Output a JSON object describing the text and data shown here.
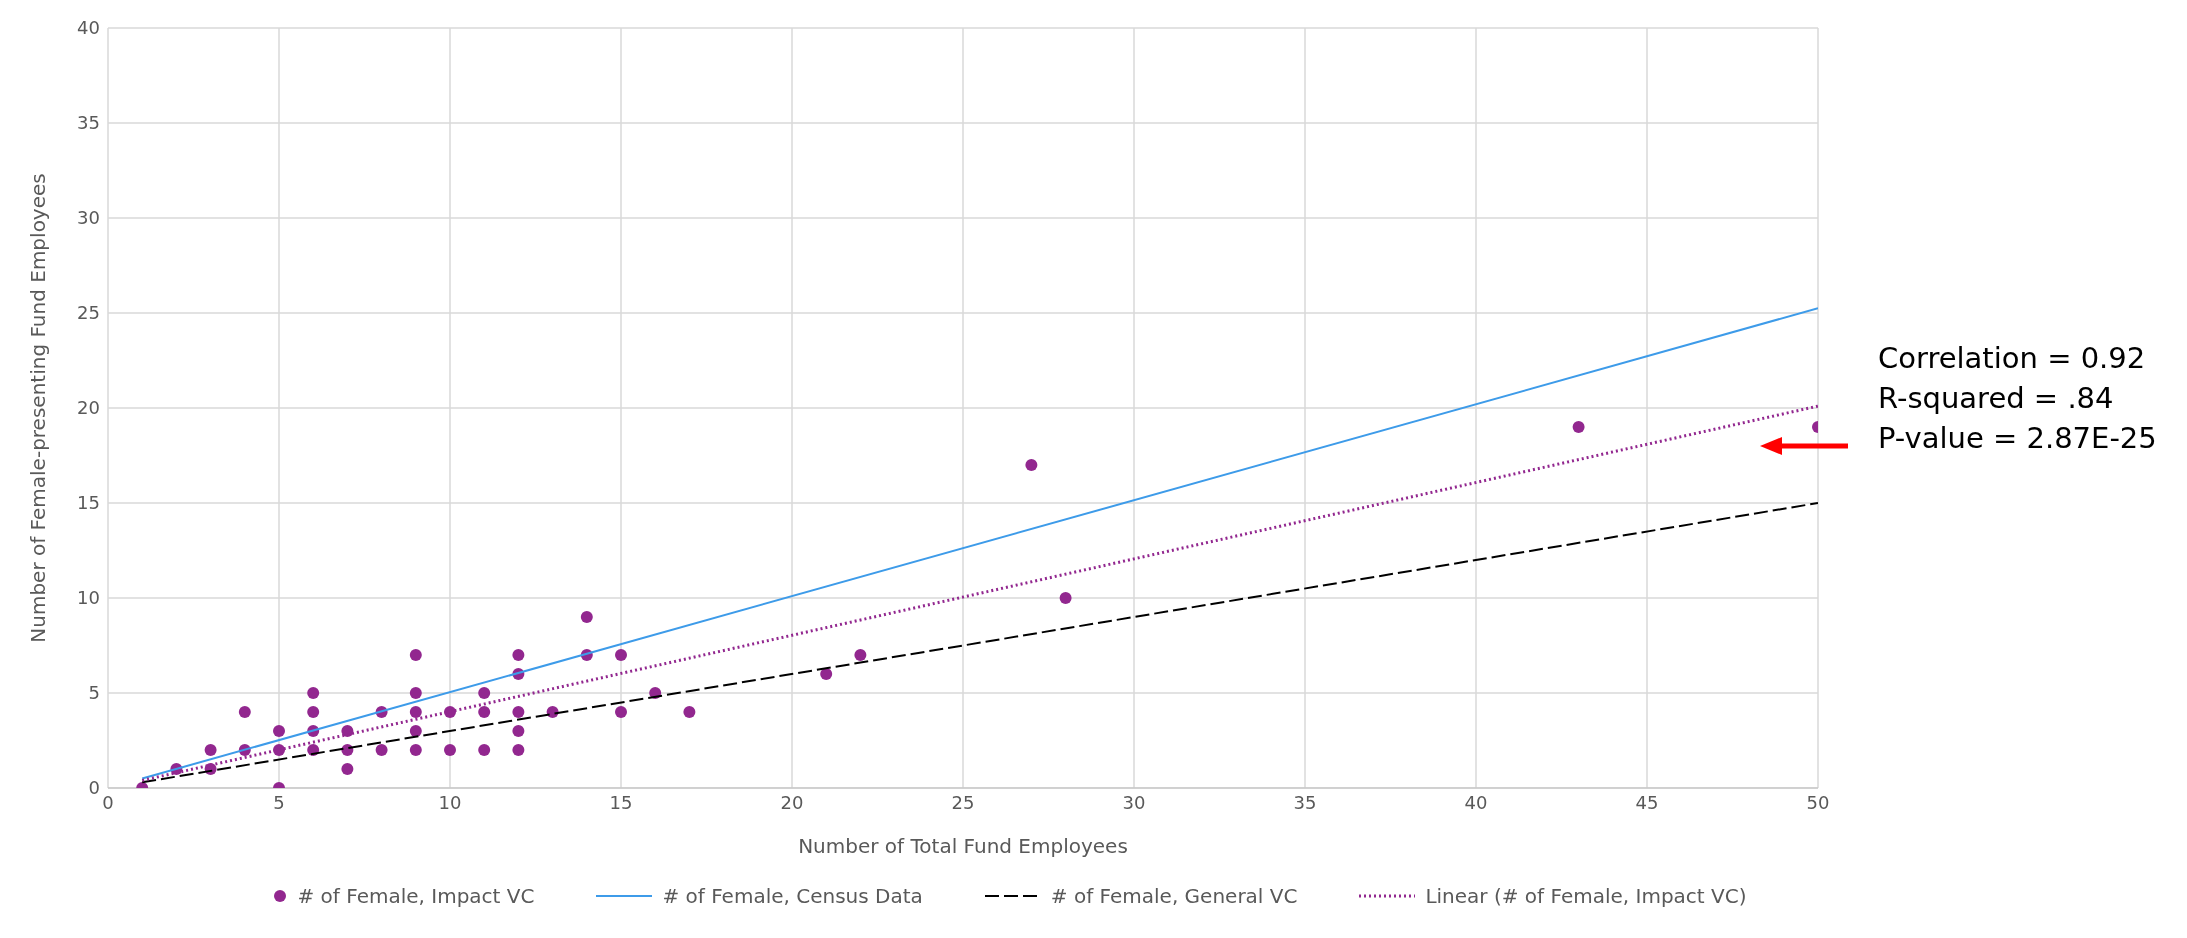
{
  "chart_data": {
    "type": "scatter",
    "xlabel": "Number of Total Fund Employees",
    "ylabel": "Number of Female-presenting Fund Employees",
    "xlim": [
      0,
      50
    ],
    "xticks": [
      0,
      5,
      10,
      15,
      20,
      25,
      30,
      35,
      40,
      45,
      50
    ],
    "ylim": [
      0,
      40
    ],
    "yticks": [
      0,
      5,
      10,
      15,
      20,
      25,
      30,
      35,
      40
    ],
    "grid": true,
    "legend": "bottom",
    "series": [
      {
        "name": "# of Female, Impact VC",
        "type": "scatter",
        "marker": "circle",
        "color": "#92278f",
        "x": [
          1,
          2,
          3,
          3,
          4,
          4,
          5,
          5,
          5,
          6,
          6,
          6,
          6,
          7,
          7,
          7,
          8,
          8,
          9,
          9,
          9,
          9,
          9,
          10,
          10,
          11,
          11,
          11,
          12,
          12,
          12,
          12,
          12,
          13,
          14,
          14,
          15,
          15,
          16,
          17,
          21,
          22,
          27,
          28,
          43,
          50
        ],
        "values": [
          0,
          1,
          2,
          1,
          4,
          2,
          3,
          2,
          0,
          5,
          4,
          3,
          2,
          3,
          2,
          1,
          4,
          2,
          7,
          5,
          4,
          3,
          2,
          4,
          2,
          5,
          4,
          2,
          7,
          6,
          4,
          3,
          2,
          4,
          9,
          7,
          7,
          4,
          5,
          4,
          6,
          7,
          17,
          10,
          19,
          19
        ]
      },
      {
        "name": "# of Female, Census Data",
        "type": "line",
        "marker": "none",
        "line_style": "solid",
        "color": "#3d9be9",
        "x": [
          1,
          50
        ],
        "values": [
          0.5,
          25.25
        ]
      },
      {
        "name": "# of Female, General VC",
        "type": "line",
        "marker": "none",
        "line_style": "dashed",
        "color": "#000000",
        "x": [
          1,
          50
        ],
        "values": [
          0.3,
          15
        ]
      },
      {
        "name": "Linear (# of Female, Impact VC)",
        "type": "line",
        "marker": "none",
        "line_style": "dotted",
        "color": "#92278f",
        "x": [
          1,
          50
        ],
        "values": [
          0.4,
          20.1
        ]
      }
    ],
    "annotations": [
      "Correlation = 0.92",
      "R-squared = .84",
      "P-value = 2.87E-25"
    ]
  }
}
